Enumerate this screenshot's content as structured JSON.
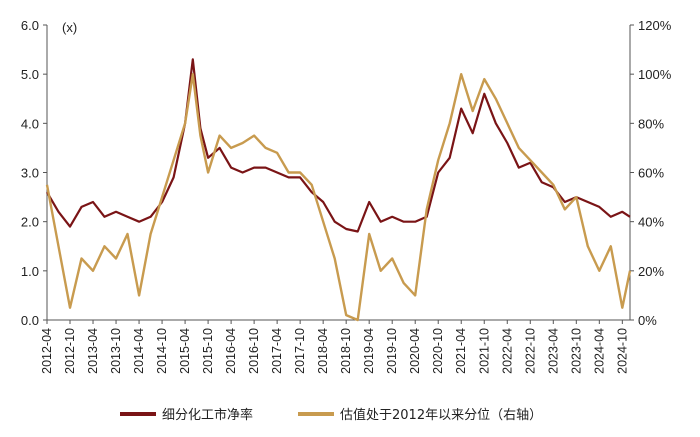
{
  "chart_data": {
    "type": "line",
    "left_axis": {
      "unit_label": "(x)",
      "ylim": [
        0,
        6
      ],
      "ticks": [
        "0.0",
        "1.0",
        "2.0",
        "3.0",
        "4.0",
        "5.0",
        "6.0"
      ]
    },
    "right_axis": {
      "ylim": [
        0,
        1.2
      ],
      "ticks": [
        "0%",
        "20%",
        "40%",
        "60%",
        "80%",
        "100%",
        "120%"
      ]
    },
    "x_ticks": [
      "2012-04",
      "2012-10",
      "2013-04",
      "2013-10",
      "2014-04",
      "2014-10",
      "2015-04",
      "2015-10",
      "2016-04",
      "2016-10",
      "2017-04",
      "2017-10",
      "2018-04",
      "2018-10",
      "2019-04",
      "2019-10",
      "2020-04",
      "2020-10",
      "2021-04",
      "2021-10",
      "2022-04",
      "2022-10",
      "2023-04",
      "2023-10",
      "2024-04",
      "2024-10"
    ],
    "x": [
      "2012-04",
      "2012-07",
      "2012-10",
      "2013-01",
      "2013-04",
      "2013-07",
      "2013-10",
      "2014-01",
      "2014-04",
      "2014-07",
      "2014-10",
      "2015-01",
      "2015-04",
      "2015-06",
      "2015-08",
      "2015-10",
      "2016-01",
      "2016-04",
      "2016-07",
      "2016-10",
      "2017-01",
      "2017-04",
      "2017-07",
      "2017-10",
      "2018-01",
      "2018-04",
      "2018-07",
      "2018-10",
      "2019-01",
      "2019-04",
      "2019-07",
      "2019-10",
      "2020-01",
      "2020-04",
      "2020-07",
      "2020-10",
      "2021-01",
      "2021-04",
      "2021-07",
      "2021-10",
      "2022-01",
      "2022-04",
      "2022-07",
      "2022-10",
      "2023-01",
      "2023-04",
      "2023-07",
      "2023-10",
      "2024-01",
      "2024-04",
      "2024-07",
      "2024-10",
      "2024-12"
    ],
    "series": [
      {
        "name": "细分化工市净率",
        "axis": "left",
        "color": "#7a1416",
        "values": [
          2.6,
          2.2,
          1.9,
          2.3,
          2.4,
          2.1,
          2.2,
          2.1,
          2.0,
          2.1,
          2.4,
          2.9,
          4.0,
          5.3,
          3.9,
          3.3,
          3.5,
          3.1,
          3.0,
          3.1,
          3.1,
          3.0,
          2.9,
          2.9,
          2.6,
          2.4,
          2.0,
          1.85,
          1.8,
          2.4,
          2.0,
          2.1,
          2.0,
          2.0,
          2.1,
          3.0,
          3.3,
          4.3,
          3.8,
          4.6,
          4.0,
          3.6,
          3.1,
          3.2,
          2.8,
          2.7,
          2.4,
          2.5,
          2.4,
          2.3,
          2.1,
          2.2,
          2.1
        ]
      },
      {
        "name": "估值处于2012年以来分位（右轴）",
        "axis": "right",
        "color": "#c89b4f",
        "values": [
          0.55,
          0.3,
          0.05,
          0.25,
          0.2,
          0.3,
          0.25,
          0.35,
          0.1,
          0.35,
          0.5,
          0.65,
          0.8,
          1.0,
          0.75,
          0.6,
          0.75,
          0.7,
          0.72,
          0.75,
          0.7,
          0.68,
          0.6,
          0.6,
          0.55,
          0.4,
          0.25,
          0.02,
          0.0,
          0.35,
          0.2,
          0.25,
          0.15,
          0.1,
          0.45,
          0.65,
          0.8,
          1.0,
          0.85,
          0.98,
          0.9,
          0.8,
          0.7,
          0.65,
          0.6,
          0.55,
          0.45,
          0.5,
          0.3,
          0.2,
          0.3,
          0.05,
          0.2
        ]
      }
    ]
  },
  "legend": [
    {
      "label": "细分化工市净率",
      "color": "#7a1416"
    },
    {
      "label": "估值处于2012年以来分位（右轴）",
      "color": "#c89b4f"
    }
  ]
}
